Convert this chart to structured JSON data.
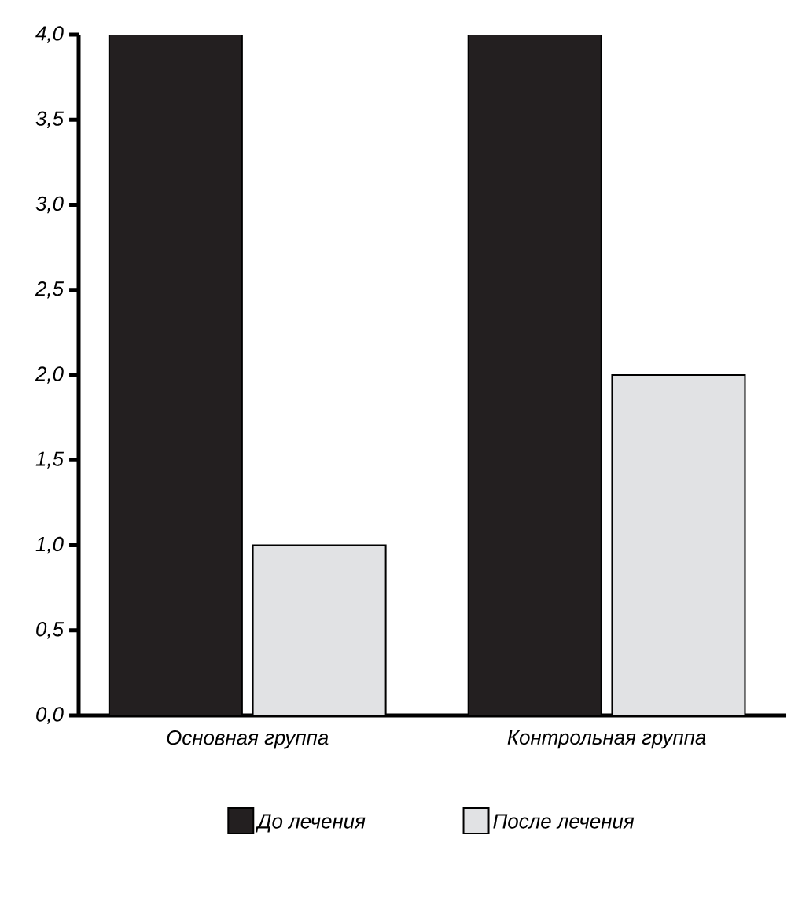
{
  "chart_data": {
    "type": "bar",
    "categories": [
      "Основная группа",
      "Контрольная группа"
    ],
    "series": [
      {
        "name": "До лечения",
        "color": "#231f20",
        "values": [
          4.0,
          4.0
        ]
      },
      {
        "name": "После лечения",
        "color": "#e1e2e4",
        "values": [
          1.0,
          2.0
        ]
      }
    ],
    "ylim": [
      0,
      4.0
    ],
    "yticks": [
      {
        "value": 0,
        "label": "0,0"
      },
      {
        "value": 0.5,
        "label": "0,5"
      },
      {
        "value": 1.0,
        "label": "1,0"
      },
      {
        "value": 1.5,
        "label": "1,5"
      },
      {
        "value": 2.0,
        "label": "2,0"
      },
      {
        "value": 2.5,
        "label": "2,5"
      },
      {
        "value": 3.0,
        "label": "3,0"
      },
      {
        "value": 3.5,
        "label": "3,5"
      },
      {
        "value": 4.0,
        "label": "4,0"
      }
    ],
    "grid": false,
    "legend": "bottom"
  }
}
